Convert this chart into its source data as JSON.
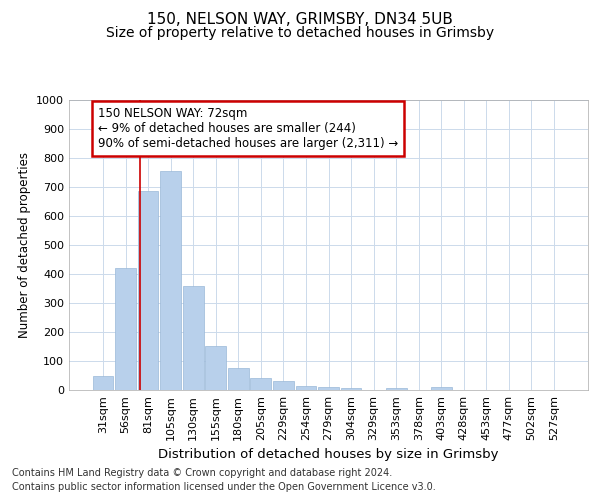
{
  "title1": "150, NELSON WAY, GRIMSBY, DN34 5UB",
  "title2": "Size of property relative to detached houses in Grimsby",
  "xlabel": "Distribution of detached houses by size in Grimsby",
  "ylabel": "Number of detached properties",
  "categories": [
    "31sqm",
    "56sqm",
    "81sqm",
    "105sqm",
    "130sqm",
    "155sqm",
    "180sqm",
    "205sqm",
    "229sqm",
    "254sqm",
    "279sqm",
    "304sqm",
    "329sqm",
    "353sqm",
    "378sqm",
    "403sqm",
    "428sqm",
    "453sqm",
    "477sqm",
    "502sqm",
    "527sqm"
  ],
  "values": [
    50,
    420,
    685,
    755,
    360,
    152,
    75,
    40,
    30,
    15,
    11,
    8,
    0,
    8,
    0,
    10,
    0,
    0,
    0,
    0,
    0
  ],
  "bar_color": "#b8d0eb",
  "bar_edge_color": "#9ab8d8",
  "grid_color": "#ccdaeb",
  "annotation_box_text": "150 NELSON WAY: 72sqm\n← 9% of detached houses are smaller (244)\n90% of semi-detached houses are larger (2,311) →",
  "annotation_box_color": "#ffffff",
  "annotation_box_edge_color": "#cc0000",
  "annotation_line_color": "#cc0000",
  "footnote1": "Contains HM Land Registry data © Crown copyright and database right 2024.",
  "footnote2": "Contains public sector information licensed under the Open Government Licence v3.0.",
  "ylim": [
    0,
    1000
  ],
  "yticks": [
    0,
    100,
    200,
    300,
    400,
    500,
    600,
    700,
    800,
    900,
    1000
  ],
  "title1_fontsize": 11,
  "title2_fontsize": 10,
  "xlabel_fontsize": 9.5,
  "ylabel_fontsize": 8.5,
  "tick_fontsize": 8,
  "annotation_fontsize": 8.5,
  "footnote_fontsize": 7
}
